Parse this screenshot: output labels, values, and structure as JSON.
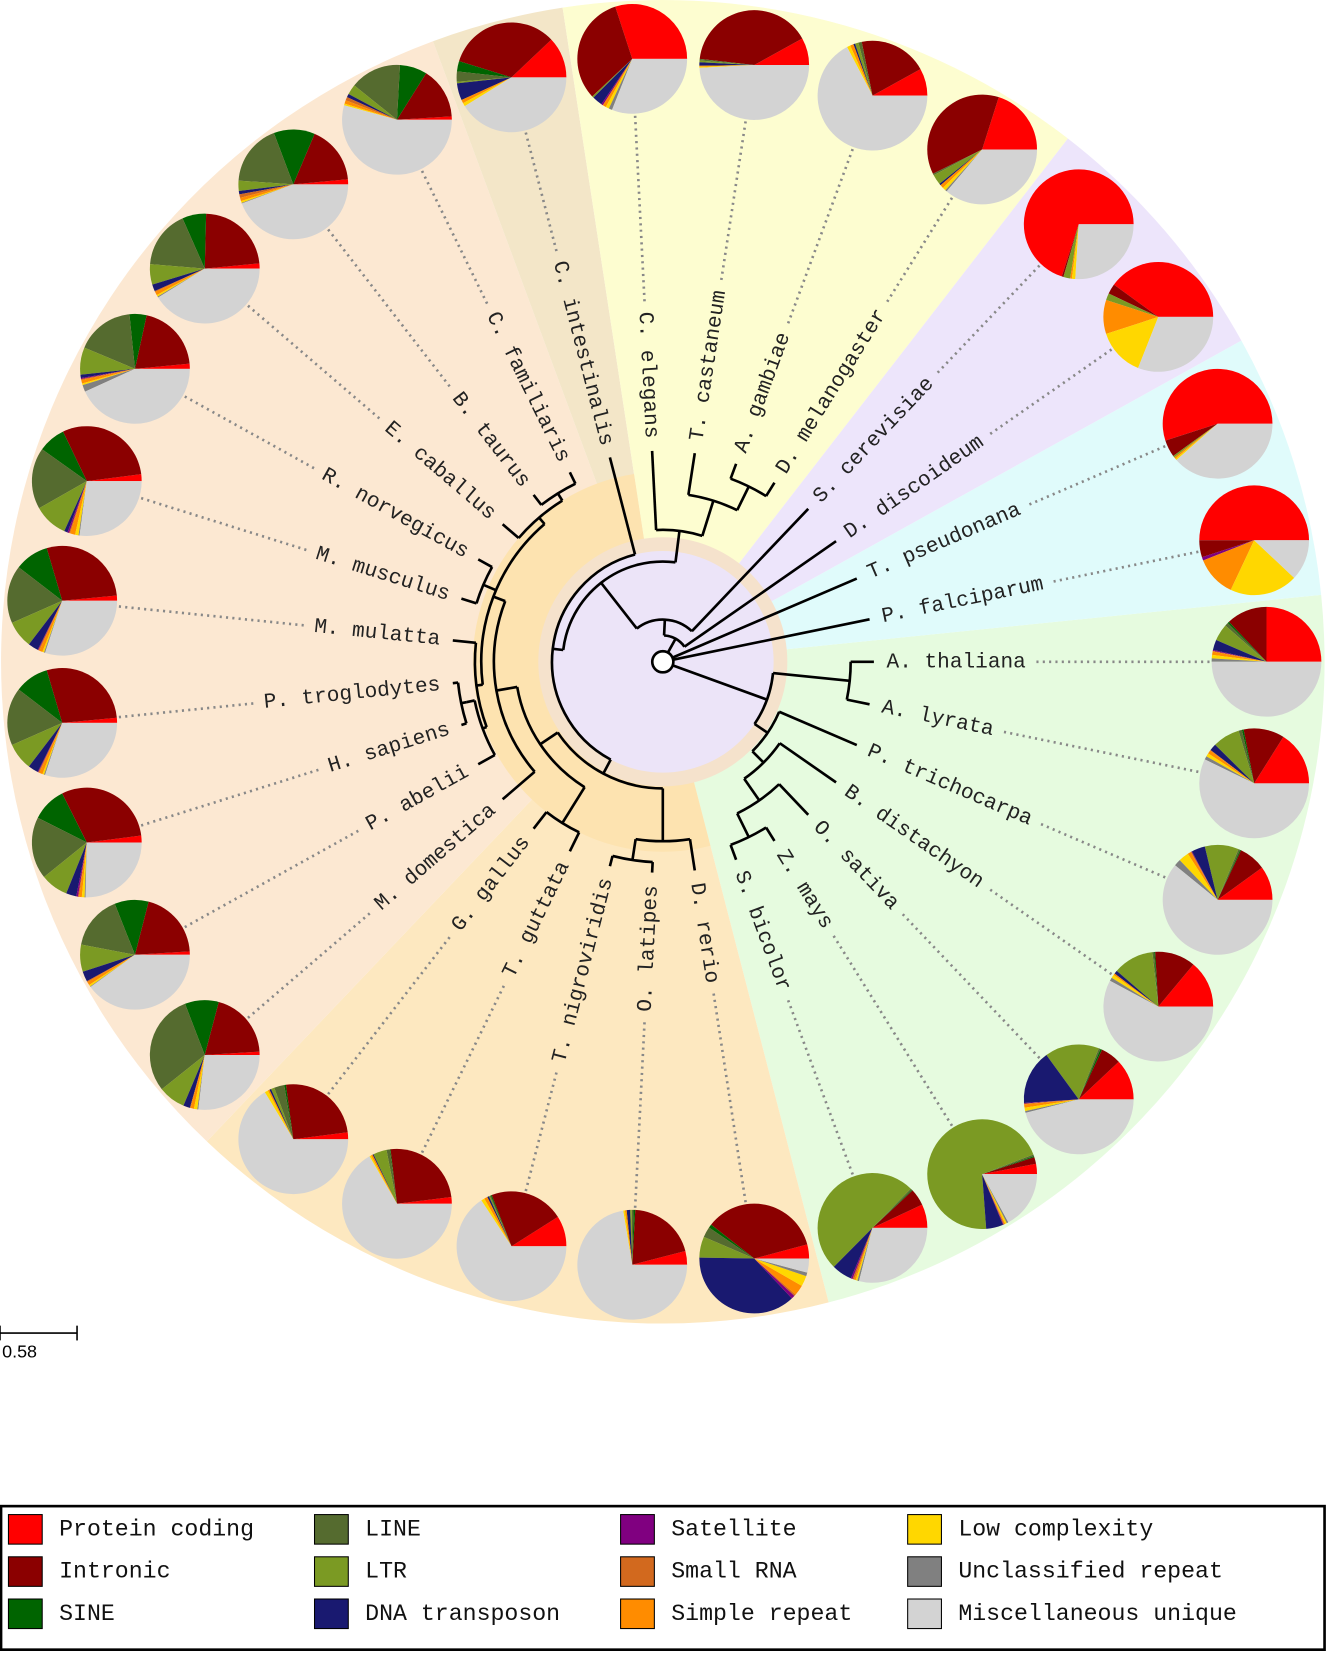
{
  "species": [
    {
      "name": "A. thaliana",
      "composition": [
        25,
        12,
        0.5,
        1,
        5,
        3,
        0.3,
        0.2,
        1,
        1,
        1,
        50
      ]
    },
    {
      "name": "A. lyrata",
      "composition": [
        16,
        12,
        0.5,
        1,
        8,
        2,
        0,
        0.2,
        1,
        1,
        1,
        57
      ]
    },
    {
      "name": "P. trichocarpa",
      "composition": [
        10,
        8,
        0.3,
        0.5,
        10,
        4,
        0.2,
        0.2,
        1,
        3,
        2,
        61
      ]
    },
    {
      "name": "B. distachyon",
      "composition": [
        14,
        12,
        0.3,
        0.5,
        12,
        1,
        0,
        0,
        0.5,
        1,
        1,
        58
      ]
    },
    {
      "name": "O. sativa",
      "composition": [
        12,
        6,
        0.5,
        0.5,
        16,
        16,
        0.2,
        0.2,
        1,
        1,
        0.5,
        46
      ]
    },
    {
      "name": "Z. mays",
      "composition": [
        3,
        2,
        0.3,
        0.5,
        70,
        5,
        0.2,
        0.2,
        0.3,
        0.5,
        0.5,
        17
      ]
    },
    {
      "name": "S. bicolor",
      "composition": [
        7,
        5,
        0.2,
        0.5,
        50,
        6,
        0.5,
        0.5,
        0.5,
        0.5,
        0.5,
        29
      ]
    },
    {
      "name": "D. rerio",
      "composition": [
        4,
        34,
        1,
        3,
        6,
        36,
        1,
        0.5,
        3,
        3,
        1,
        4
      ]
    },
    {
      "name": "O. latipes",
      "composition": [
        4,
        20,
        0.5,
        0.5,
        0.5,
        1,
        0,
        0,
        0.5,
        0.5,
        0,
        72
      ]
    },
    {
      "name": "T. nigroviridis",
      "composition": [
        9,
        22,
        0.3,
        0.3,
        0.3,
        0.5,
        0,
        0,
        1,
        1,
        0,
        66
      ]
    },
    {
      "name": "T. guttata",
      "composition": [
        2,
        25,
        0.2,
        1,
        4,
        0.3,
        0,
        0,
        0.5,
        0.5,
        0,
        67
      ]
    },
    {
      "name": "G. gallus",
      "composition": [
        2,
        25,
        0.5,
        3,
        1,
        0.5,
        0,
        0,
        0.5,
        1,
        0,
        66
      ]
    },
    {
      "name": "M. domestica",
      "composition": [
        1,
        20,
        10,
        30,
        8,
        2,
        0,
        0.2,
        1,
        1,
        0.3,
        27
      ]
    },
    {
      "name": "P. abelii",
      "composition": [
        1,
        20,
        10,
        16,
        8,
        3,
        0,
        0.3,
        1,
        0.5,
        0.2,
        40
      ]
    },
    {
      "name": "H. sapiens",
      "composition": [
        2,
        30,
        10,
        18,
        8,
        3,
        0.5,
        0.3,
        0.8,
        0.8,
        0.3,
        25
      ]
    },
    {
      "name": "P. troglodytes",
      "composition": [
        1.5,
        28,
        10,
        17,
        8,
        3,
        0.2,
        0.3,
        1,
        0.5,
        0.3,
        30
      ]
    },
    {
      "name": "M. mulatta",
      "composition": [
        1.5,
        28,
        10,
        17,
        8,
        3,
        0.2,
        0.3,
        1,
        0.5,
        0.3,
        30
      ]
    },
    {
      "name": "M. musculus",
      "composition": [
        2,
        30,
        8,
        18,
        10,
        1,
        0.5,
        0.3,
        1.5,
        1,
        0.3,
        27
      ]
    },
    {
      "name": "R. norvegicus",
      "composition": [
        1.5,
        20,
        5,
        17,
        8,
        1,
        0.3,
        0.3,
        1,
        0.5,
        2,
        43
      ]
    },
    {
      "name": "E. caballus",
      "composition": [
        1.5,
        23,
        7,
        17,
        6,
        2,
        0,
        0.3,
        1,
        0.5,
        0.3,
        41
      ]
    },
    {
      "name": "B. taurus",
      "composition": [
        1.5,
        17,
        12,
        18,
        3,
        1,
        0,
        1,
        1,
        0.5,
        0.2,
        44
      ]
    },
    {
      "name": "C. familiaris",
      "composition": [
        1,
        15,
        8,
        15,
        3,
        1,
        0,
        1,
        1,
        0.5,
        0,
        54
      ]
    },
    {
      "name": "C. intestinalis",
      "composition": [
        12,
        33,
        3,
        3,
        0.5,
        5,
        0,
        0,
        1,
        1,
        0,
        41
      ]
    },
    {
      "name": "C. elegans",
      "composition": [
        30,
        32,
        0,
        0,
        0.5,
        3,
        0.5,
        0,
        1,
        1,
        1,
        31
      ]
    },
    {
      "name": "T. castaneum",
      "composition": [
        8,
        40,
        0,
        0.5,
        0.5,
        1,
        0,
        0,
        0.3,
        0.3,
        0,
        49
      ]
    },
    {
      "name": "A. gambiae",
      "composition": [
        8,
        20,
        0,
        1,
        1,
        0.5,
        0,
        0,
        1,
        1,
        0,
        67
      ]
    },
    {
      "name": "D. melanogaster",
      "composition": [
        20,
        37,
        0,
        0.5,
        3,
        0.5,
        0,
        0,
        1,
        1,
        0.5,
        36
      ]
    },
    {
      "name": "S. cerevisiae",
      "composition": [
        70,
        0.5,
        0,
        0,
        2,
        0,
        0,
        0,
        0.5,
        1,
        0,
        26
      ]
    },
    {
      "name": "D. discoideum",
      "composition": [
        40,
        3,
        0,
        0,
        2,
        0,
        0,
        0,
        10,
        14,
        0,
        31
      ]
    },
    {
      "name": "T. pseudonana",
      "composition": [
        55,
        5,
        0,
        0,
        0.5,
        0,
        0,
        0,
        0.5,
        0.5,
        0,
        38.5
      ]
    },
    {
      "name": "P. falciparum",
      "composition": [
        50,
        5,
        0,
        0,
        0,
        0,
        1,
        0,
        12,
        20,
        0,
        12
      ]
    }
  ],
  "legend": {
    "categories": [
      {
        "label": "Protein coding",
        "color": "#ff0000"
      },
      {
        "label": "Intronic",
        "color": "#8b0000"
      },
      {
        "label": "SINE",
        "color": "#006400"
      },
      {
        "label": "LINE",
        "color": "#556b2f"
      },
      {
        "label": "LTR",
        "color": "#7b9a23"
      },
      {
        "label": "DNA transposon",
        "color": "#191970"
      },
      {
        "label": "Satellite",
        "color": "#800080"
      },
      {
        "label": "Small RNA",
        "color": "#d2691e"
      },
      {
        "label": "Simple repeat",
        "color": "#ff8c00"
      },
      {
        "label": "Low complexity",
        "color": "#ffd700"
      },
      {
        "label": "Unclassified repeat",
        "color": "#808080"
      },
      {
        "label": "Miscellaneous unique",
        "color": "#d3d3d3"
      }
    ]
  },
  "scale_bar": {
    "label": "0.58"
  }
}
